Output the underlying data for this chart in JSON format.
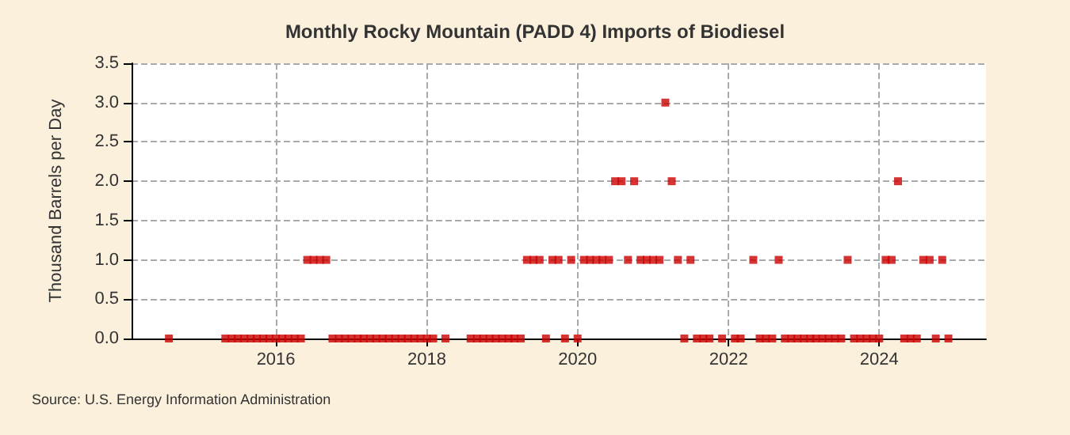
{
  "chart_data": {
    "type": "scatter",
    "title": "Monthly Rocky Mountain (PADD 4) Imports of Biodiesel",
    "ylabel": "Thousand Barrels per Day",
    "annotations": [
      "Source: U.S. Energy Information Administration"
    ],
    "series": [
      {
        "color": "#cc0000",
        "x": [
          "2014-08",
          "2015-05",
          "2015-06",
          "2015-07",
          "2015-08",
          "2015-09",
          "2015-10",
          "2015-11",
          "2015-12",
          "2016-01",
          "2016-02",
          "2016-03",
          "2016-04",
          "2016-05",
          "2016-06",
          "2016-07",
          "2016-08",
          "2016-09",
          "2016-10",
          "2016-11",
          "2016-12",
          "2017-01",
          "2017-02",
          "2017-03",
          "2017-04",
          "2017-05",
          "2017-06",
          "2017-07",
          "2017-08",
          "2017-09",
          "2017-10",
          "2017-11",
          "2017-12",
          "2018-01",
          "2018-02",
          "2018-04",
          "2018-08",
          "2018-09",
          "2018-10",
          "2018-11",
          "2018-12",
          "2019-01",
          "2019-02",
          "2019-03",
          "2019-04",
          "2019-05",
          "2019-06",
          "2019-07",
          "2019-08",
          "2019-09",
          "2019-10",
          "2019-11",
          "2019-12",
          "2020-01",
          "2020-02",
          "2020-03",
          "2020-04",
          "2020-05",
          "2020-06",
          "2020-07",
          "2020-08",
          "2020-09",
          "2020-10",
          "2020-11",
          "2020-12",
          "2021-01",
          "2021-02",
          "2021-03",
          "2021-04",
          "2021-05",
          "2021-06",
          "2021-07",
          "2021-08",
          "2021-09",
          "2021-10",
          "2021-12",
          "2022-02",
          "2022-03",
          "2022-05",
          "2022-06",
          "2022-07",
          "2022-08",
          "2022-09",
          "2022-10",
          "2022-11",
          "2022-12",
          "2023-01",
          "2023-02",
          "2023-03",
          "2023-04",
          "2023-05",
          "2023-06",
          "2023-07",
          "2023-08",
          "2023-09",
          "2023-10",
          "2023-11",
          "2023-12",
          "2024-01",
          "2024-02",
          "2024-03",
          "2024-04",
          "2024-05",
          "2024-06",
          "2024-07",
          "2024-08",
          "2024-09",
          "2024-10",
          "2024-11",
          "2024-12"
        ],
        "values": [
          0,
          0,
          0,
          0,
          0,
          0,
          0,
          0,
          0,
          0,
          0,
          0,
          0,
          0,
          1,
          1,
          1,
          1,
          0,
          0,
          0,
          0,
          0,
          0,
          0,
          0,
          0,
          0,
          0,
          0,
          0,
          0,
          0,
          0,
          0,
          0,
          0,
          0,
          0,
          0,
          0,
          0,
          0,
          0,
          0,
          1,
          1,
          1,
          0,
          1,
          1,
          0,
          1,
          0,
          1,
          1,
          1,
          1,
          1,
          2,
          2,
          1,
          2,
          1,
          1,
          1,
          1,
          3,
          2,
          1,
          0,
          1,
          0,
          0,
          0,
          0,
          0,
          0,
          1,
          0,
          0,
          0,
          1,
          0,
          0,
          0,
          0,
          0,
          0,
          0,
          0,
          0,
          0,
          1,
          0,
          0,
          0,
          0,
          0,
          1,
          1,
          2,
          0,
          0,
          0,
          1,
          1,
          0,
          1,
          0
        ]
      }
    ],
    "xlim": [
      "2014-02",
      "2025-06"
    ],
    "xticks": [
      "2016",
      "2018",
      "2020",
      "2022",
      "2024"
    ],
    "ylim": [
      0,
      3.5
    ],
    "yticks": [
      {
        "value": 0,
        "label": "0.0"
      },
      {
        "value": 0.5,
        "label": "0.5"
      },
      {
        "value": 1,
        "label": "1.0"
      },
      {
        "value": 1.5,
        "label": "1.5"
      },
      {
        "value": 2,
        "label": "2.0"
      },
      {
        "value": 2.5,
        "label": "2.5"
      },
      {
        "value": 3,
        "label": "3.0"
      },
      {
        "value": 3.5,
        "label": "3.5"
      }
    ],
    "grid": true,
    "marker": "square"
  }
}
